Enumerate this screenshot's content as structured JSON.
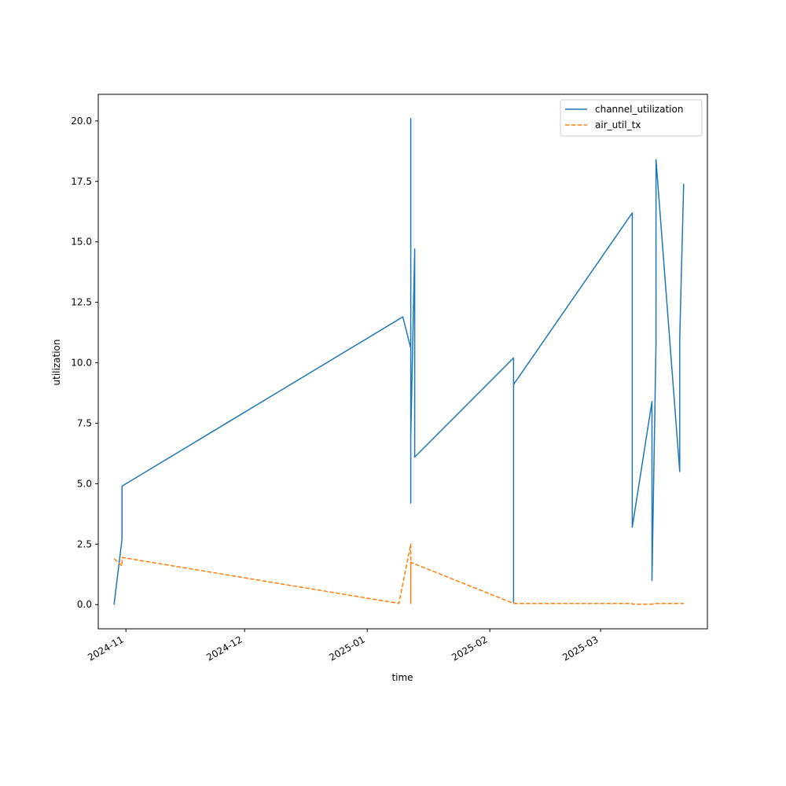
{
  "chart_data": {
    "type": "line",
    "title": "",
    "xlabel": "time",
    "ylabel": "utilization",
    "x_type": "date",
    "xlim": [
      "2024-10-25",
      "2025-03-28"
    ],
    "ylim": [
      -1.0,
      21.1
    ],
    "grid": false,
    "legend_position": "top-right",
    "x_ticks": [
      "2024-11-01",
      "2024-12-01",
      "2025-01-01",
      "2025-02-01",
      "2025-03-01"
    ],
    "x_tick_labels": [
      "2024-11",
      "2024-12",
      "2025-01",
      "2025-02",
      "2025-03"
    ],
    "y_ticks": [
      0.0,
      2.5,
      5.0,
      7.5,
      10.0,
      12.5,
      15.0,
      17.5,
      20.0
    ],
    "y_tick_labels": [
      "0.0",
      "2.5",
      "5.0",
      "7.5",
      "10.0",
      "12.5",
      "15.0",
      "17.5",
      "20.0"
    ],
    "series": [
      {
        "name": "channel_utilization",
        "color": "#1f77b4",
        "dash": "solid",
        "points": [
          [
            "2024-10-29",
            0.0
          ],
          [
            "2024-10-31",
            2.7
          ],
          [
            "2024-10-31",
            4.9
          ],
          [
            "2025-01-10",
            11.9
          ],
          [
            "2025-01-12",
            10.6
          ],
          [
            "2025-01-12",
            4.2
          ],
          [
            "2025-01-12",
            20.1
          ],
          [
            "2025-01-12",
            6.9
          ],
          [
            "2025-01-13",
            14.7
          ],
          [
            "2025-01-13",
            6.1
          ],
          [
            "2025-02-07",
            10.2
          ],
          [
            "2025-02-07",
            0.1
          ],
          [
            "2025-02-07",
            9.1
          ],
          [
            "2025-03-09",
            16.2
          ],
          [
            "2025-03-09",
            3.2
          ],
          [
            "2025-03-14",
            8.4
          ],
          [
            "2025-03-14",
            1.0
          ],
          [
            "2025-03-15",
            10.8
          ],
          [
            "2025-03-15",
            18.4
          ],
          [
            "2025-03-21",
            5.5
          ],
          [
            "2025-03-21",
            11.0
          ],
          [
            "2025-03-22",
            17.4
          ]
        ]
      },
      {
        "name": "air_util_tx",
        "color": "#ff7f0e",
        "dash": "dashed",
        "points": [
          [
            "2024-10-29",
            1.9
          ],
          [
            "2024-10-31",
            1.6
          ],
          [
            "2024-10-31",
            1.95
          ],
          [
            "2025-01-09",
            0.05
          ],
          [
            "2025-01-12",
            2.5
          ],
          [
            "2025-01-12",
            1.8
          ],
          [
            "2025-01-12",
            0.05
          ],
          [
            "2025-01-12",
            1.75
          ],
          [
            "2025-02-07",
            0.05
          ],
          [
            "2025-03-09",
            0.05
          ],
          [
            "2025-03-09",
            0.02
          ],
          [
            "2025-03-14",
            0.02
          ],
          [
            "2025-03-15",
            0.05
          ],
          [
            "2025-03-21",
            0.05
          ],
          [
            "2025-03-22",
            0.05
          ]
        ]
      }
    ]
  }
}
